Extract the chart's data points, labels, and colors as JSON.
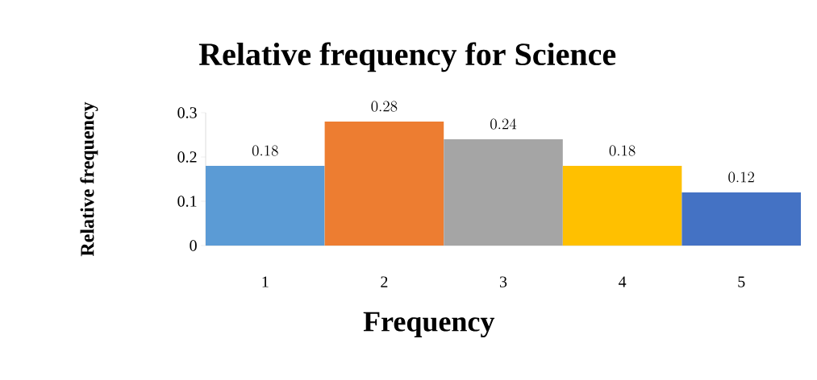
{
  "chart_data": {
    "type": "bar",
    "title": "Relative frequency for Science",
    "xlabel": "Frequency",
    "ylabel": "Relative frequency",
    "categories": [
      "1",
      "2",
      "3",
      "4",
      "5"
    ],
    "values": [
      0.18,
      0.28,
      0.24,
      0.18,
      0.12
    ],
    "colors": [
      "#5b9bd5",
      "#ed7d31",
      "#a5a5a5",
      "#ffc000",
      "#4472c4"
    ],
    "ylim": [
      0,
      0.3
    ],
    "yticks": [
      0,
      0.1,
      0.2,
      0.3
    ],
    "data_labels": true
  }
}
